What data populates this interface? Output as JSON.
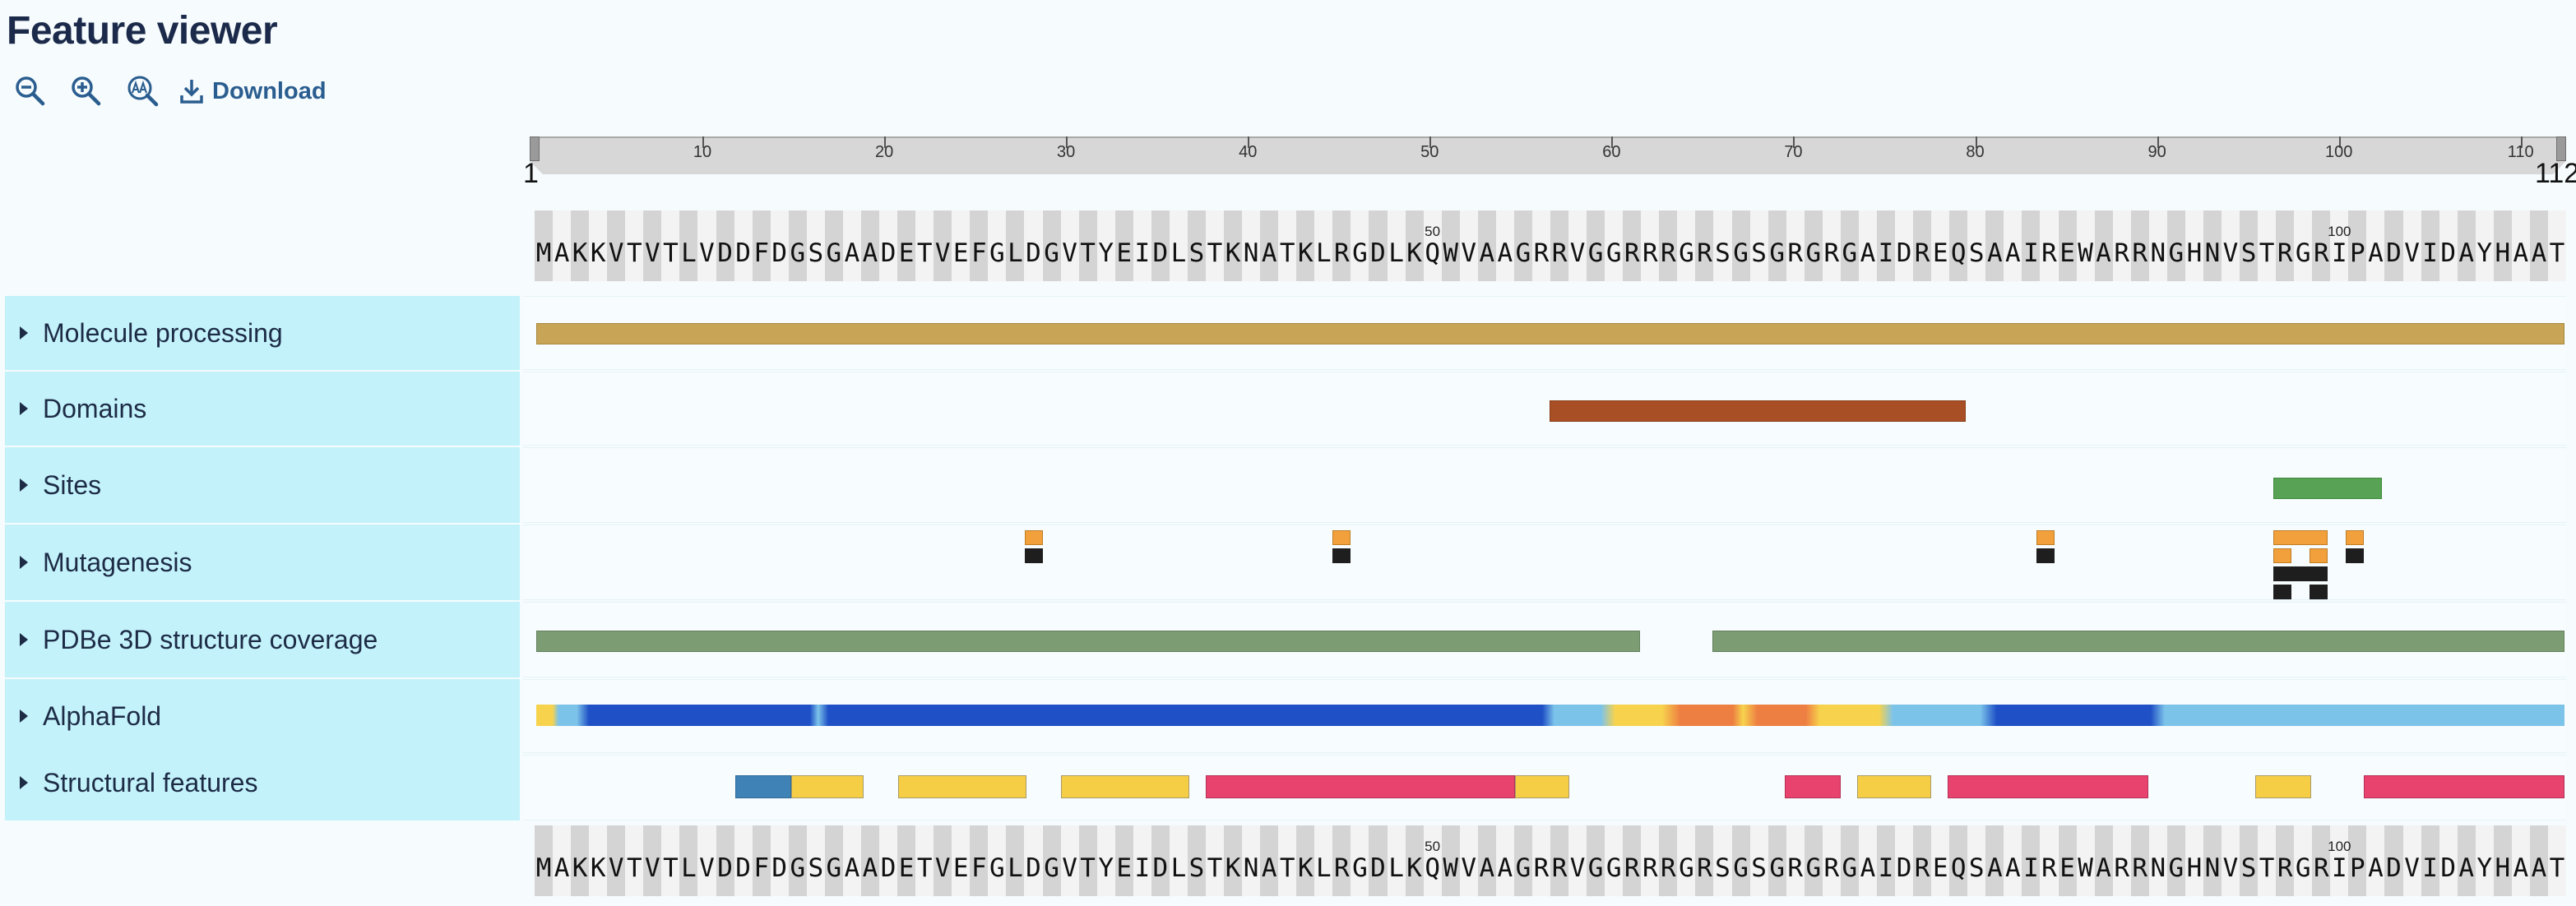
{
  "page": {
    "title": "Feature viewer"
  },
  "toolbar": {
    "zoom_out_icon": "zoom-out-icon",
    "zoom_in_icon": "zoom-in-icon",
    "text_size_icon": "text-size-icon",
    "download_icon": "download-icon",
    "download_label": "Download"
  },
  "ruler": {
    "start_label": "1",
    "end_label": "112",
    "ticks": [
      "10",
      "20",
      "30",
      "40",
      "50",
      "60",
      "70",
      "80",
      "90",
      "100",
      "110"
    ]
  },
  "sequence": {
    "residues": "MAKKVTVTLVDDFDGSGAADETVEFGLDGVTYEIDLSTKNATKLRGDLKQWVAAGRRVGGRRRGRSGSGRGRGAIDREQSAAIREWARRNGHNVSTRGRIPADVIDAYHAAT",
    "markers": [
      "50",
      "100"
    ]
  },
  "categories": [
    {
      "label": "Molecule processing"
    },
    {
      "label": "Domains"
    },
    {
      "label": "Sites"
    },
    {
      "label": "Mutagenesis"
    },
    {
      "label": "PDBe 3D structure coverage"
    },
    {
      "label": "AlphaFold"
    },
    {
      "label": "Structural features"
    }
  ],
  "colors": {
    "molecule_processing": "#c8a456",
    "domain": "#a84f25",
    "site": "#57a254",
    "mutagenesis_top": "#f1a03c",
    "mutagenesis_bottom": "#1e1e1e",
    "pdbe": "#7c9c73",
    "alphafold_very_high": "#1f50c6",
    "alphafold_confident": "#7cc3ea",
    "alphafold_low": "#f7d34d",
    "alphafold_very_low": "#ee7f42",
    "helix": "#e8426e",
    "strand": "#f6ce46",
    "turn": "#3f82b5"
  }
}
